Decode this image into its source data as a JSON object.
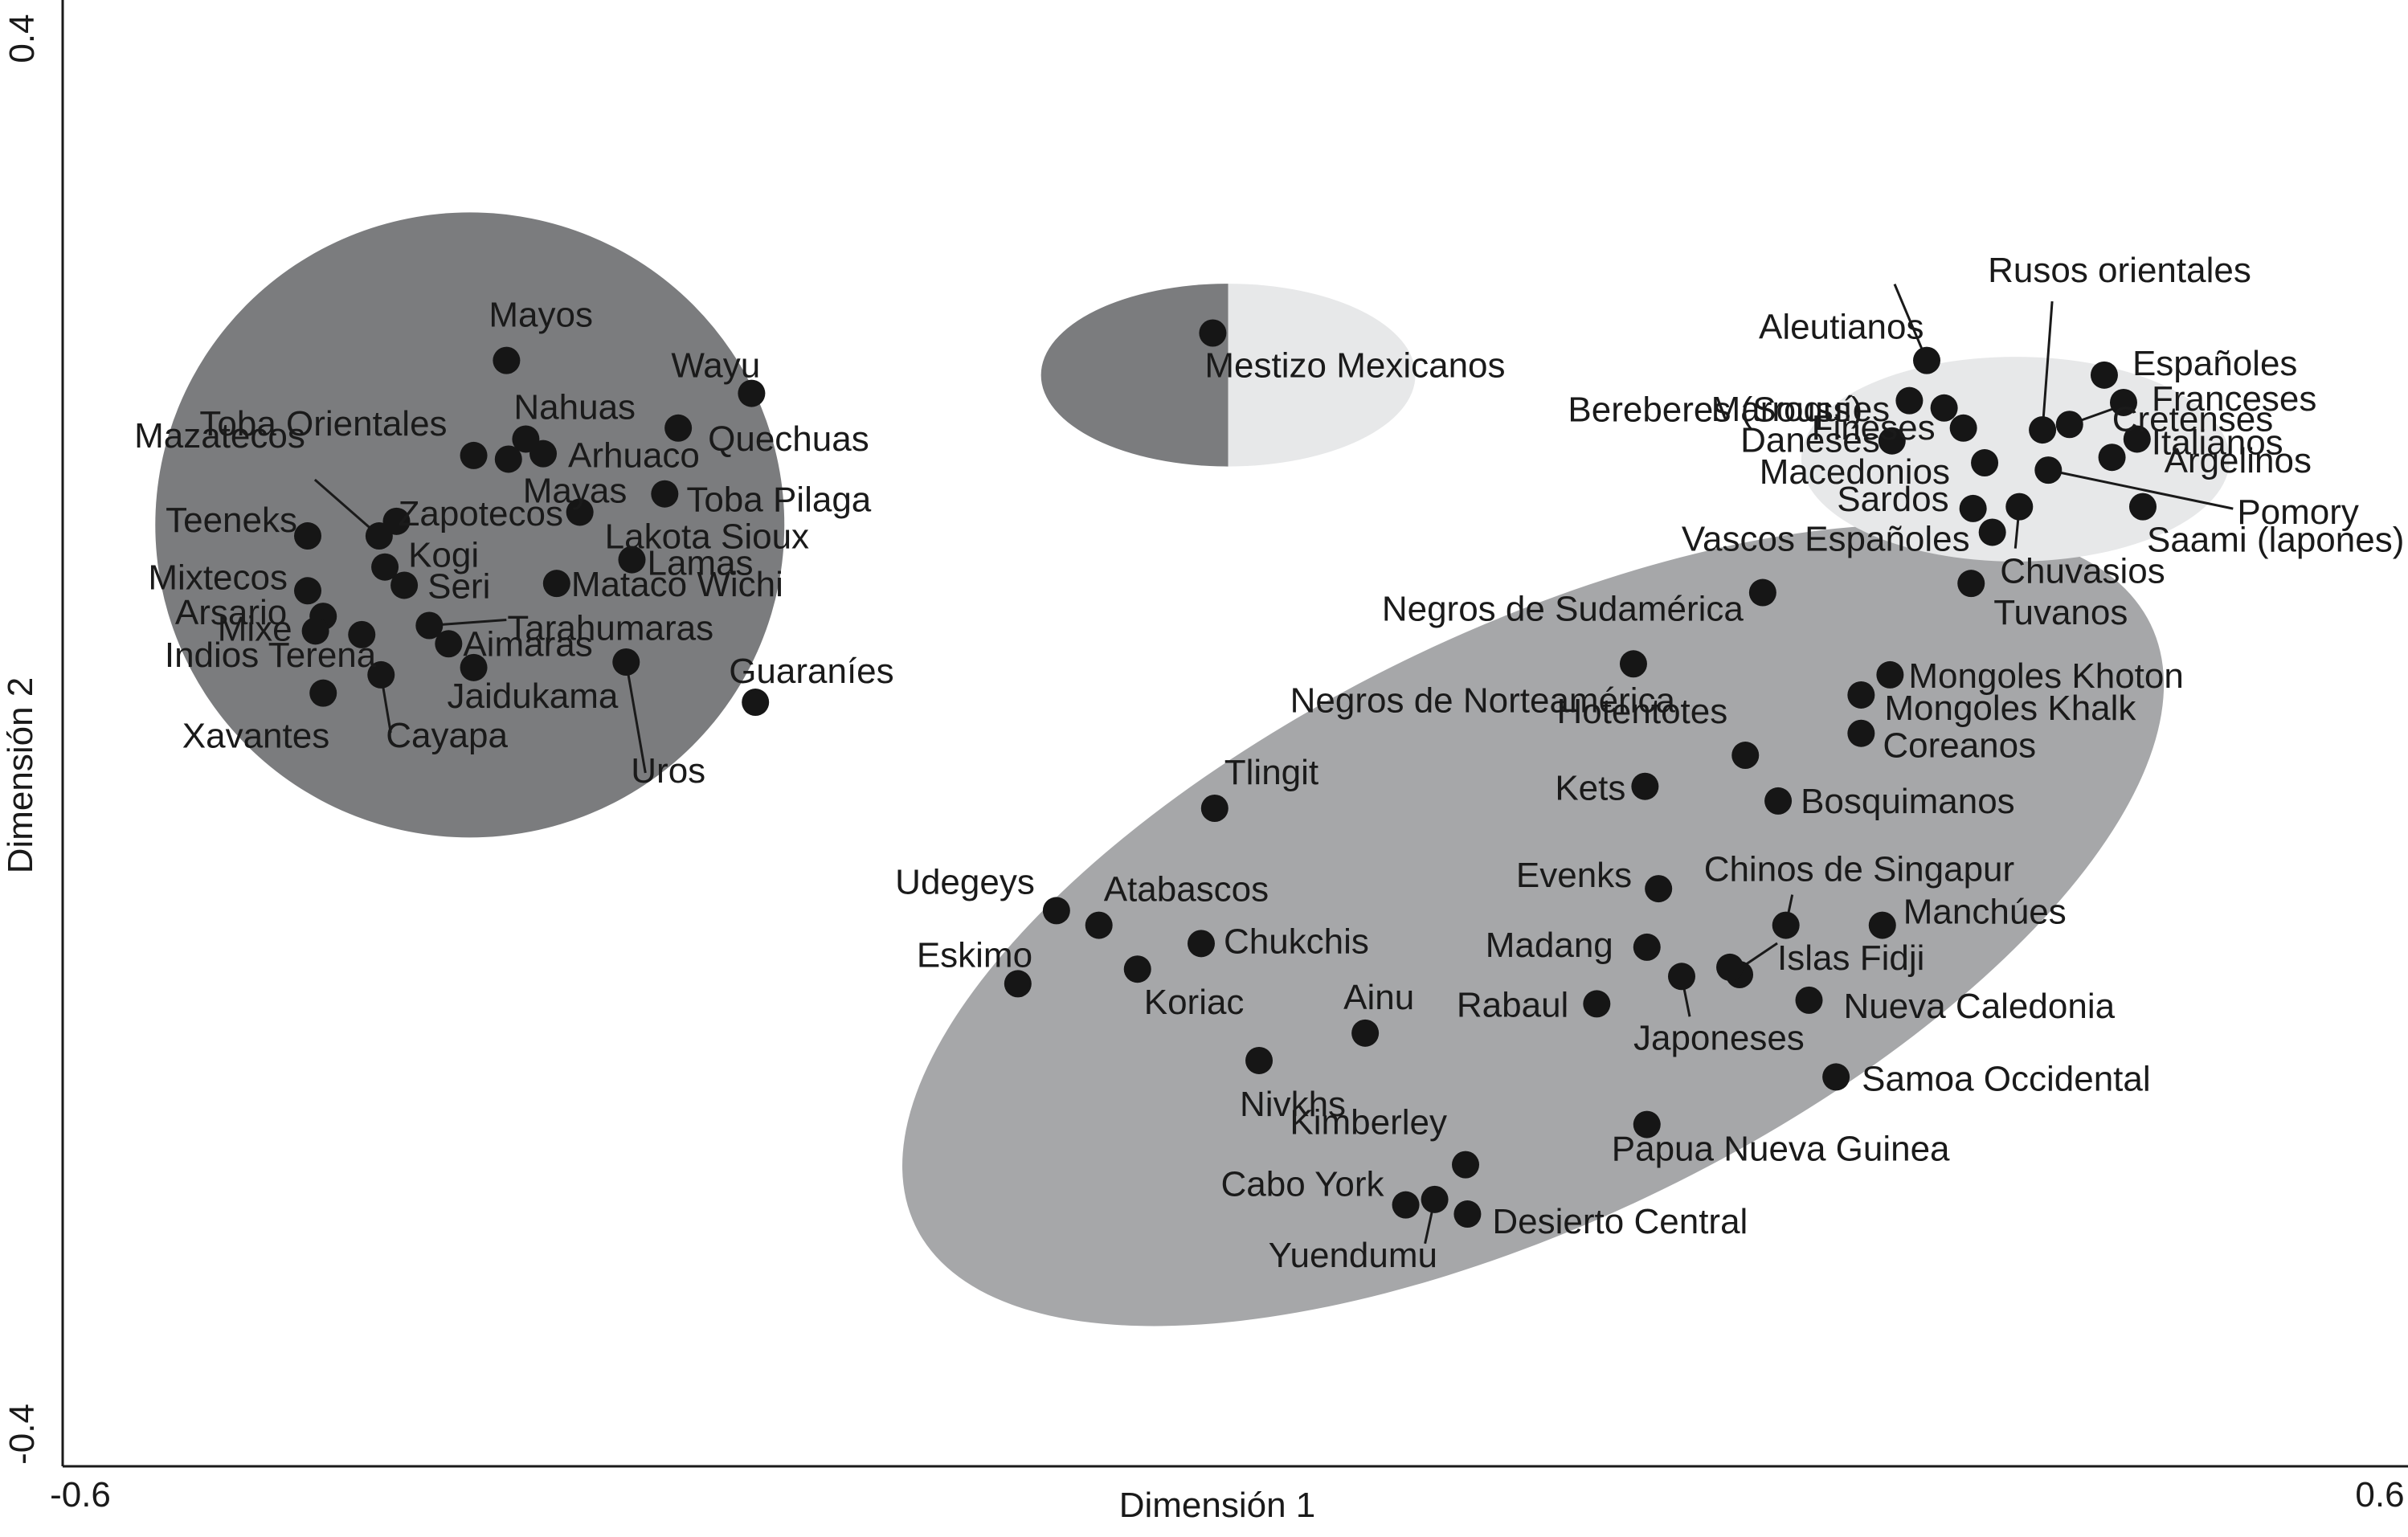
{
  "chart_data": {
    "type": "scatter",
    "xlabel": "Dimensión 1",
    "ylabel": "Dimensión 2",
    "xlim": [
      -0.6,
      0.6
    ],
    "ylim": [
      -0.4,
      0.4
    ],
    "x_ticks": [
      "-0.6",
      "0.6"
    ],
    "y_ticks": [
      "-0.4",
      "0.4"
    ],
    "grid": false,
    "colors": {
      "cluster_dark": "#7b7c7e",
      "cluster_mid": "#a6a7a9",
      "cluster_light": "#e7e8e9",
      "point": "#161616",
      "text": "#1a1a1a"
    },
    "clusters": [
      {
        "shade": "dark",
        "center": [
          -0.389,
          0.115
        ],
        "radius_x": 0.163,
        "radius_y": 0.171
      },
      {
        "shade": "mid",
        "center": [
          0.162,
          -0.104
        ],
        "radius_x": 0.356,
        "radius_y": 0.161,
        "angle_deg": -26
      },
      {
        "shade": "light",
        "center": [
          0.412,
          0.151
        ],
        "radius_x": 0.111,
        "radius_y": 0.056
      },
      {
        "shade": "split",
        "center": [
          0.004,
          0.197
        ],
        "radius_x": 0.097,
        "radius_y": 0.05
      }
    ],
    "points": [
      {
        "label": "Mayos",
        "x": -0.37,
        "y": 0.205
      },
      {
        "label": "Wayu",
        "x": -0.243,
        "y": 0.187
      },
      {
        "label": "Quechuas",
        "x": -0.281,
        "y": 0.168
      },
      {
        "label": "Nahuas",
        "x": -0.36,
        "y": 0.162
      },
      {
        "label": "Toba Orientales",
        "x": -0.387,
        "y": 0.153
      },
      {
        "label": "Mayas",
        "x": -0.369,
        "y": 0.151
      },
      {
        "label": "Arhuaco",
        "x": -0.351,
        "y": 0.154
      },
      {
        "label": "Toba Pilaga",
        "x": -0.288,
        "y": 0.132
      },
      {
        "label": "Zapotecos",
        "x": -0.427,
        "y": 0.117
      },
      {
        "label": "Mazatecos",
        "x": -0.436,
        "y": 0.109
      },
      {
        "label": "Teeneks",
        "x": -0.473,
        "y": 0.109
      },
      {
        "label": "Lakota Sioux",
        "x": -0.332,
        "y": 0.122
      },
      {
        "label": "Lamas",
        "x": -0.305,
        "y": 0.096
      },
      {
        "label": "Kogi",
        "x": -0.433,
        "y": 0.092
      },
      {
        "label": "Seri",
        "x": -0.423,
        "y": 0.082
      },
      {
        "label": "Mataco Wichi",
        "x": -0.344,
        "y": 0.083
      },
      {
        "label": "Mixtecos",
        "x": -0.473,
        "y": 0.079
      },
      {
        "label": "Arsario",
        "x": -0.465,
        "y": 0.065
      },
      {
        "label": "Mixe",
        "x": -0.469,
        "y": 0.057
      },
      {
        "label": "Indios Terena",
        "x": -0.445,
        "y": 0.055
      },
      {
        "label": "Tarahumaras",
        "x": -0.41,
        "y": 0.06
      },
      {
        "label": "Aimaras",
        "x": -0.4,
        "y": 0.05
      },
      {
        "label": "Jaidukama",
        "x": -0.387,
        "y": 0.037
      },
      {
        "label": "Cayapa",
        "x": -0.435,
        "y": 0.033
      },
      {
        "label": "Xavantes",
        "x": -0.465,
        "y": 0.023
      },
      {
        "label": "Uros",
        "x": -0.308,
        "y": 0.04
      },
      {
        "label": "Guaraníes",
        "x": -0.241,
        "y": 0.018
      },
      {
        "label": "Mestizo Mexicanos",
        "x": -0.004,
        "y": 0.22
      },
      {
        "label": "Aleutianos",
        "x": 0.366,
        "y": 0.205
      },
      {
        "label": "Rusos orientales",
        "x": 0.426,
        "y": 0.167
      },
      {
        "label": "Marroquíes",
        "x": 0.375,
        "y": 0.179
      },
      {
        "label": "Bereberes (Souss)",
        "x": 0.357,
        "y": 0.183
      },
      {
        "label": "Españoles",
        "x": 0.458,
        "y": 0.197
      },
      {
        "label": "Franceses",
        "x": 0.468,
        "y": 0.182
      },
      {
        "label": "Fineses",
        "x": 0.385,
        "y": 0.168
      },
      {
        "label": "Cretenses",
        "x": 0.44,
        "y": 0.17
      },
      {
        "label": "Daneses",
        "x": 0.348,
        "y": 0.161
      },
      {
        "label": "Italianos",
        "x": 0.475,
        "y": 0.162
      },
      {
        "label": "Macedonios",
        "x": 0.396,
        "y": 0.149
      },
      {
        "label": "Argelinos",
        "x": 0.462,
        "y": 0.152
      },
      {
        "label": "Pomory",
        "x": 0.429,
        "y": 0.145
      },
      {
        "label": "Sardos",
        "x": 0.39,
        "y": 0.124
      },
      {
        "label": "Chuvasios",
        "x": 0.414,
        "y": 0.125
      },
      {
        "label": "Saami (lapones)",
        "x": 0.478,
        "y": 0.125
      },
      {
        "label": "Vascos Españoles",
        "x": 0.4,
        "y": 0.111
      },
      {
        "label": "Tuvanos",
        "x": 0.389,
        "y": 0.083
      },
      {
        "label": "Negros de Sudamérica",
        "x": 0.281,
        "y": 0.078
      },
      {
        "label": "Negros de Norteamérica",
        "x": 0.214,
        "y": 0.039
      },
      {
        "label": "Mongoles Khoton",
        "x": 0.347,
        "y": 0.033
      },
      {
        "label": "Mongoles Khalk",
        "x": 0.332,
        "y": 0.022
      },
      {
        "label": "Coreanos",
        "x": 0.332,
        "y": 0.001
      },
      {
        "label": "Hotentotes",
        "x": 0.272,
        "y": -0.011
      },
      {
        "label": "Kets",
        "x": 0.22,
        "y": -0.028
      },
      {
        "label": "Bosquimanos",
        "x": 0.289,
        "y": -0.036
      },
      {
        "label": "Tlingit",
        "x": -0.003,
        "y": -0.04
      },
      {
        "label": "Evenks",
        "x": 0.227,
        "y": -0.084
      },
      {
        "label": "Chinos de Singapur",
        "x": 0.293,
        "y": -0.104
      },
      {
        "label": "Manchúes",
        "x": 0.343,
        "y": -0.104
      },
      {
        "label": "Madang",
        "x": 0.221,
        "y": -0.116
      },
      {
        "label": "Udegeys",
        "x": -0.085,
        "y": -0.096
      },
      {
        "label": "Atabascos",
        "x": -0.063,
        "y": -0.104
      },
      {
        "label": "Chukchis",
        "x": -0.01,
        "y": -0.114
      },
      {
        "label": "Eskimo",
        "x": -0.105,
        "y": -0.136
      },
      {
        "label": "Koriac",
        "x": -0.043,
        "y": -0.128
      },
      {
        "label": "Japoneses",
        "x": 0.239,
        "y": -0.132
      },
      {
        "label": "Islas Fidji",
        "x": 0.269,
        "y": -0.131
      },
      {
        "label": "Nueva Caledonia",
        "x": 0.305,
        "y": -0.145
      },
      {
        "label": "Rabaul",
        "x": 0.195,
        "y": -0.147
      },
      {
        "label": "Ainu",
        "x": 0.075,
        "y": -0.163
      },
      {
        "label": "Nivkhs",
        "x": 0.02,
        "y": -0.178
      },
      {
        "label": "Samoa Occidental",
        "x": 0.319,
        "y": -0.187
      },
      {
        "label": "Papua Nueva Guinea",
        "x": 0.221,
        "y": -0.213
      },
      {
        "label": "Kimberley",
        "x": 0.127,
        "y": -0.235
      },
      {
        "label": "Cabo York",
        "x": 0.096,
        "y": -0.257
      },
      {
        "label": "Yuendumu",
        "x": 0.111,
        "y": -0.254
      },
      {
        "label": "Desierto Central",
        "x": 0.128,
        "y": -0.262
      },
      {
        "label": "",
        "x": 0.264,
        "y": -0.127
      }
    ]
  }
}
